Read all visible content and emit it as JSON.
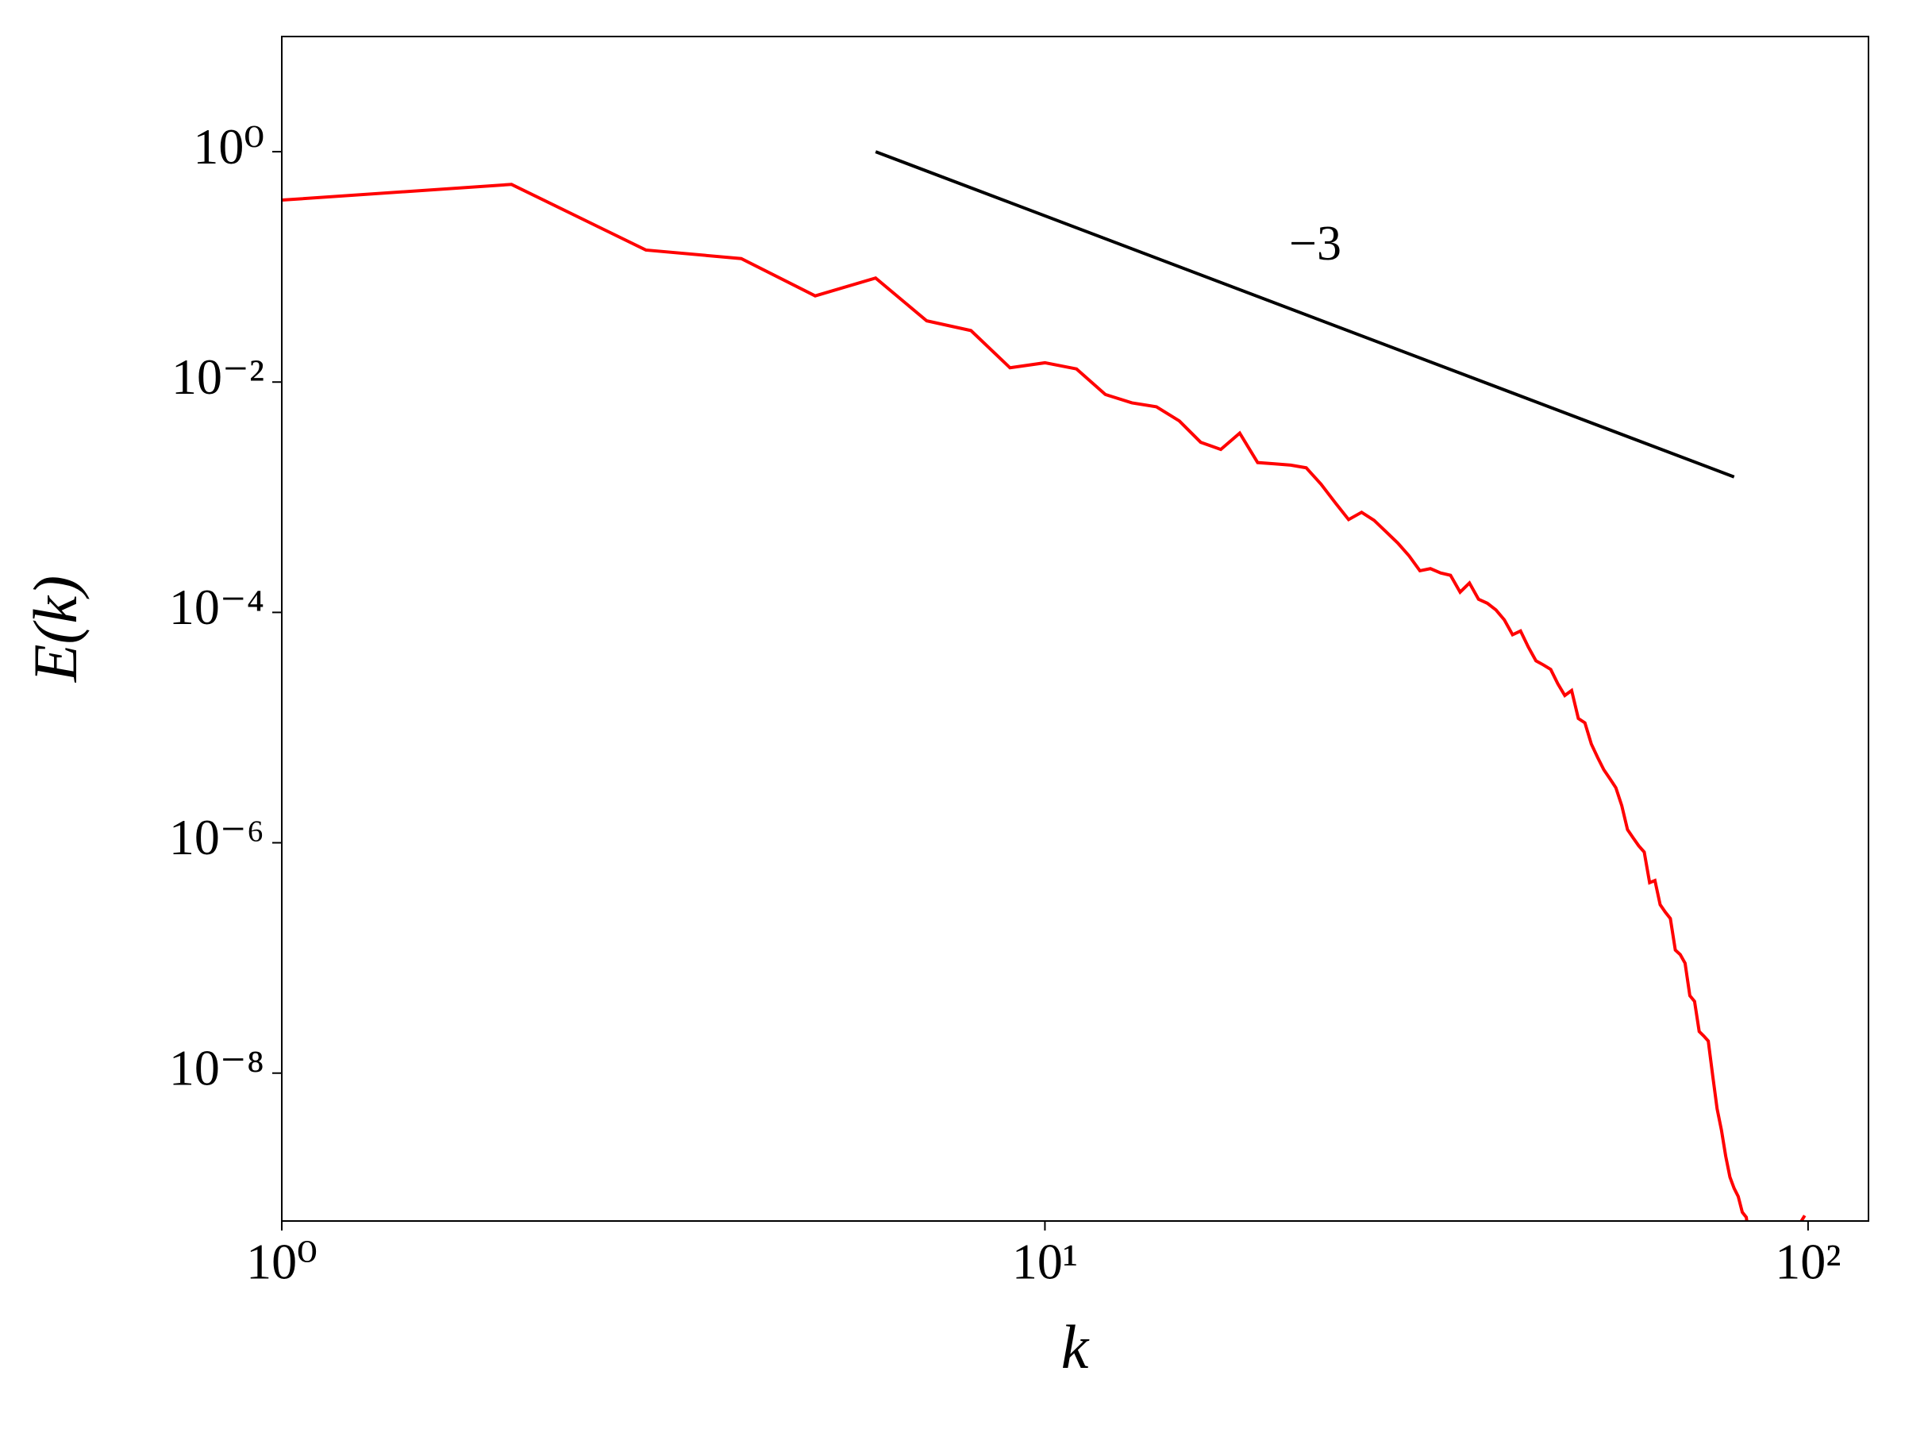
{
  "chart_data": {
    "type": "line",
    "xlabel": "k",
    "ylabel": "E(k)",
    "xscale": "log",
    "yscale": "log",
    "color": "#ff0000",
    "x": [
      1,
      2,
      3,
      4,
      5,
      6,
      7,
      8,
      9,
      10,
      11,
      12,
      13,
      14,
      15,
      16,
      17,
      18,
      19,
      20,
      21,
      22,
      23,
      24,
      25,
      26,
      27,
      28,
      29,
      30,
      31,
      32,
      33,
      34,
      35,
      36,
      37,
      38,
      39,
      40,
      41,
      42,
      43,
      44,
      45,
      46,
      47,
      48,
      49,
      50,
      51,
      52,
      53,
      54,
      55,
      56,
      57,
      58,
      59,
      60,
      61,
      62,
      63,
      64,
      65,
      66,
      67,
      68,
      69,
      70,
      71,
      72,
      73,
      74,
      75,
      76,
      77,
      78,
      79,
      80,
      81,
      82,
      83,
      84,
      97,
      98,
      99
    ],
    "values": [
      0.38,
      0.52,
      0.14,
      0.118,
      0.056,
      0.08,
      0.034,
      0.028,
      0.0133,
      0.0147,
      0.013,
      0.0078,
      0.0066,
      0.0061,
      0.0046,
      0.003,
      0.0026,
      0.0036,
      0.002,
      0.00195,
      0.0019,
      0.0018,
      0.0013,
      0.0009,
      0.00064,
      0.00074,
      0.00063,
      0.0005,
      0.0004,
      0.00031,
      0.00023,
      0.00024,
      0.00022,
      0.00021,
      0.00015,
      0.00018,
      0.00013,
      0.00012,
      0.000105,
      8.6e-05,
      6.4e-05,
      6.9e-05,
      5e-05,
      3.8e-05,
      3.5e-05,
      3.2e-05,
      2.4e-05,
      1.9e-05,
      2.1e-05,
      1.2e-05,
      1.1e-05,
      7.2e-06,
      5.5e-06,
      4.3e-06,
      3.6e-06,
      3e-06,
      2.1e-06,
      1.3e-06,
      1.1e-06,
      9.4e-07,
      8.3e-07,
      4.5e-07,
      4.7e-07,
      2.9e-07,
      2.5e-07,
      2.2e-07,
      1.17e-07,
      1.07e-07,
      9e-08,
      4.7e-08,
      4.2e-08,
      2.3e-08,
      2.1e-08,
      1.9e-08,
      9.5e-09,
      4.9e-09,
      3.2e-09,
      1.9e-09,
      1.25e-09,
      1e-09,
      8.5e-10,
      6.2e-10,
      5.6e-10,
      3e-10,
      3e-10,
      5.2e-10,
      5.8e-10
    ],
    "reference_line": {
      "x": [
        6,
        80
      ],
      "values": [
        1,
        0.0015
      ],
      "color": "#000000",
      "label": "−3"
    },
    "xlim": [
      1,
      120
    ],
    "ylim": [
      5.2e-10,
      10
    ],
    "xticks": [
      {
        "value": 1,
        "label": "10⁰"
      },
      {
        "value": 10,
        "label": "10¹"
      },
      {
        "value": 100,
        "label": "10²"
      }
    ],
    "yticks": [
      {
        "value": 1,
        "label": "10⁰"
      },
      {
        "value": 0.01,
        "label": "10⁻²"
      },
      {
        "value": 0.0001,
        "label": "10⁻⁴"
      },
      {
        "value": 1e-06,
        "label": "10⁻⁶"
      },
      {
        "value": 1e-08,
        "label": "10⁻⁸"
      }
    ]
  }
}
